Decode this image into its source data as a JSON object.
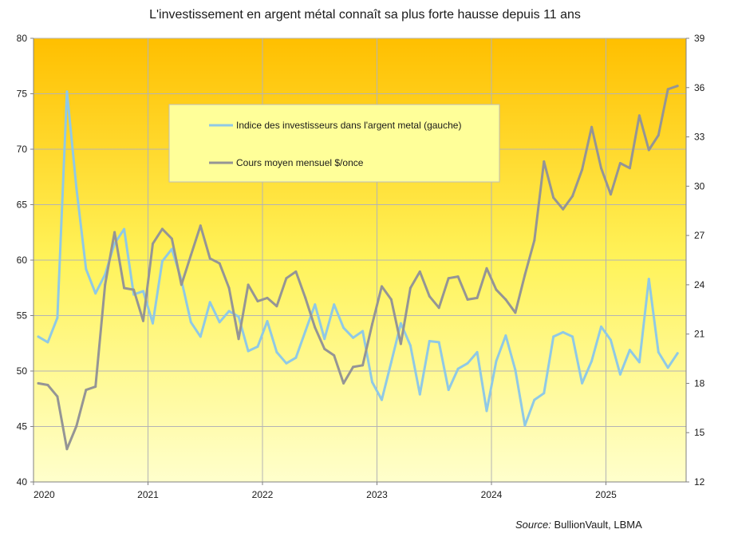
{
  "chart_data": {
    "type": "line",
    "title": "L'investissement en argent métal connaît sa plus forte hausse depuis 11 ans",
    "source_label": "Source:",
    "source_text": "BullionVault, LBMA",
    "x_start": "2020-01",
    "x_tick_labels": [
      "2020",
      "2021",
      "2022",
      "2023",
      "2024",
      "2025"
    ],
    "y_left": {
      "ylim": [
        40,
        80
      ],
      "ticks": [
        40,
        45,
        50,
        55,
        60,
        65,
        70,
        75,
        80
      ]
    },
    "y_right": {
      "ylim": [
        12,
        39
      ],
      "ticks": [
        12,
        15,
        18,
        21,
        24,
        27,
        30,
        33,
        36,
        39
      ]
    },
    "grid": true,
    "legend_position": "top-center",
    "series": [
      {
        "name": "Indice des investisseurs dans l'argent metal (gauche)",
        "axis": "left",
        "color": "#8fc9e6",
        "values": [
          53.1,
          52.6,
          54.8,
          75.2,
          66.5,
          59.2,
          57.0,
          58.7,
          61.5,
          62.8,
          56.9,
          57.2,
          54.3,
          59.9,
          61.0,
          58.2,
          54.4,
          53.1,
          56.2,
          54.4,
          55.4,
          54.9,
          51.8,
          52.2,
          54.5,
          51.7,
          50.7,
          51.2,
          53.6,
          56.0,
          52.9,
          56.0,
          53.9,
          53.0,
          53.6,
          49.0,
          47.4,
          50.8,
          54.3,
          52.3,
          47.9,
          52.7,
          52.6,
          48.3,
          50.2,
          50.7,
          51.7,
          46.4,
          50.9,
          53.2,
          50.1,
          45.1,
          47.4,
          48.0,
          53.1,
          53.5,
          53.1,
          48.9,
          50.9,
          54.0,
          52.8,
          49.7,
          51.9,
          50.8,
          58.3,
          51.7,
          50.3,
          51.6
        ]
      },
      {
        "name": "Cours moyen mensuel $/once",
        "axis": "right",
        "color": "#959595",
        "values": [
          18.0,
          17.9,
          17.2,
          14.0,
          15.4,
          17.6,
          17.8,
          24.0,
          27.2,
          23.8,
          23.7,
          21.8,
          26.5,
          27.4,
          26.8,
          24.0,
          25.8,
          27.6,
          25.6,
          25.3,
          23.8,
          20.7,
          24.0,
          23.0,
          23.2,
          22.7,
          24.4,
          24.8,
          23.2,
          21.4,
          20.1,
          19.7,
          18.0,
          19.0,
          19.1,
          21.6,
          23.9,
          23.1,
          20.4,
          23.8,
          24.8,
          23.3,
          22.6,
          24.4,
          24.5,
          23.1,
          23.2,
          25.0,
          23.7,
          23.1,
          22.3,
          24.6,
          26.7,
          31.5,
          29.3,
          28.6,
          29.4,
          31.0,
          33.6,
          31.1,
          29.5,
          31.4,
          31.1,
          34.3,
          32.2,
          33.1,
          35.9,
          36.1
        ]
      }
    ]
  }
}
